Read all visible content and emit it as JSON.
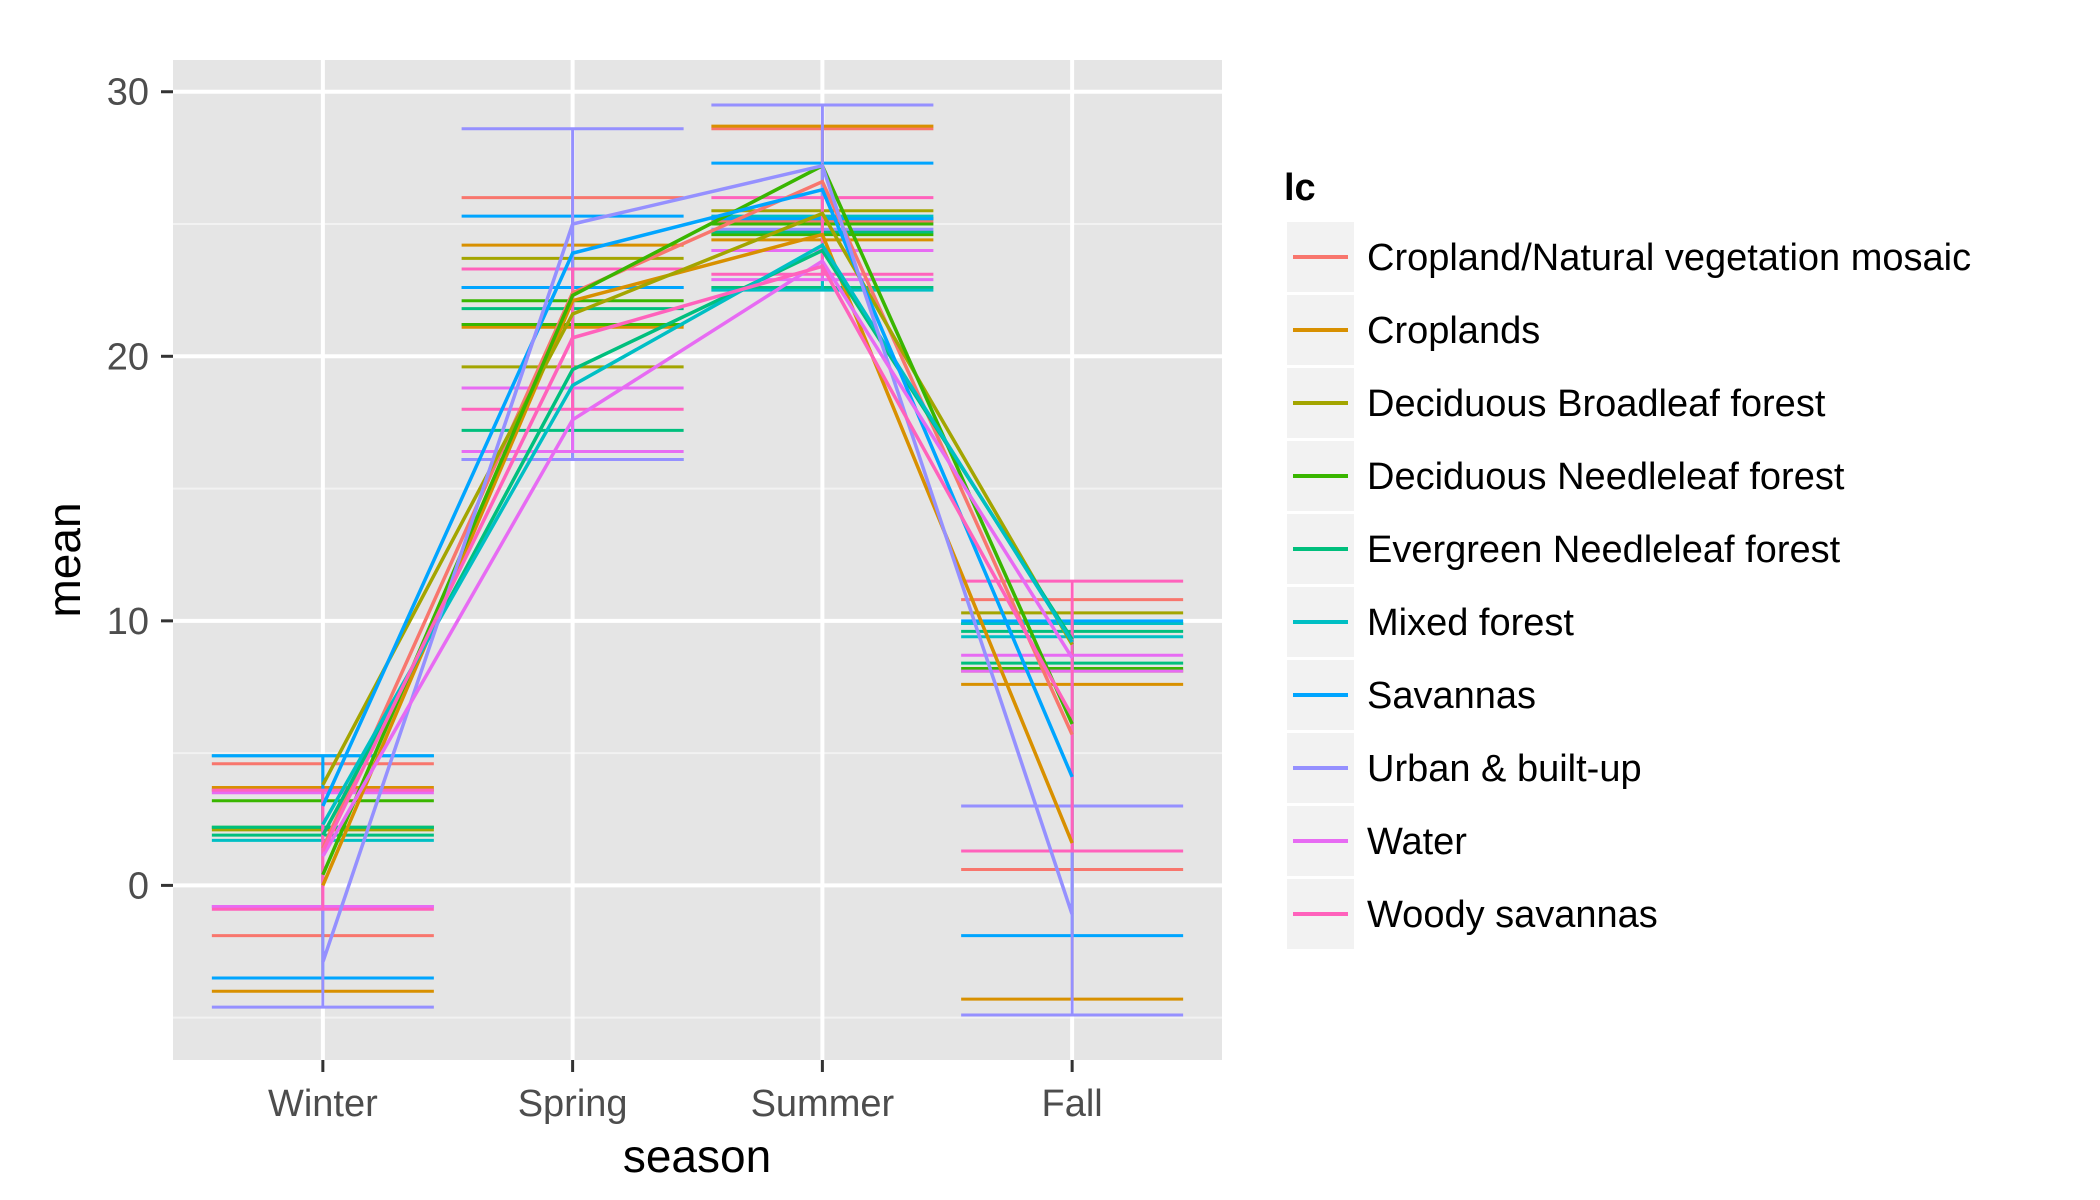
{
  "chart_data": {
    "type": "line",
    "title": "",
    "xlabel": "season",
    "ylabel": "mean",
    "categories": [
      "Winter",
      "Spring",
      "Summer",
      "Fall"
    ],
    "ylim": [
      -6.6,
      31.2
    ],
    "yticks": [
      0,
      10,
      20,
      30
    ],
    "grid": true,
    "legend_title": "lc",
    "legend_position": "right",
    "series": [
      {
        "name": "Cropland/Natural vegetation mosaic",
        "color": "#F8766D",
        "values": [
          1.4,
          22.4,
          26.6,
          5.7
        ],
        "errors": [
          [
            -1.9,
            4.6
          ],
          [
            21.2,
            26.0
          ],
          [
            25.1,
            28.6
          ],
          [
            0.6,
            10.8
          ]
        ]
      },
      {
        "name": "Croplands",
        "color": "#D89000",
        "values": [
          0.0,
          22.1,
          24.6,
          1.6
        ],
        "errors": [
          [
            -4.0,
            3.7
          ],
          [
            21.1,
            24.2
          ],
          [
            24.4,
            28.7
          ],
          [
            -4.3,
            7.6
          ]
        ]
      },
      {
        "name": "Deciduous Broadleaf forest",
        "color": "#A3A500",
        "values": [
          3.8,
          21.6,
          25.4,
          9.1
        ],
        "errors": [
          [
            2.1,
            3.6
          ],
          [
            19.6,
            23.7
          ],
          [
            25.2,
            25.5
          ],
          [
            8.1,
            10.3
          ]
        ]
      },
      {
        "name": "Deciduous Needleleaf forest",
        "color": "#39B600",
        "values": [
          0.4,
          22.3,
          27.2,
          6.1
        ],
        "errors": [
          [
            2.2,
            3.2
          ],
          [
            21.2,
            22.1
          ],
          [
            24.6,
            25.0
          ],
          [
            8.2,
            9.9
          ]
        ]
      },
      {
        "name": "Evergreen Needleleaf forest",
        "color": "#00BF7D",
        "values": [
          1.9,
          19.5,
          24.0,
          9.3
        ],
        "errors": [
          [
            1.9,
            2.2
          ],
          [
            17.2,
            21.8
          ],
          [
            22.6,
            24.7
          ],
          [
            8.4,
            9.6
          ]
        ]
      },
      {
        "name": "Mixed forest",
        "color": "#00BFC4",
        "values": [
          2.3,
          18.9,
          24.2,
          9.2
        ],
        "errors": [
          [
            1.7,
            4.9
          ],
          [
            16.1,
            22.6
          ],
          [
            22.5,
            25.3
          ],
          [
            9.4,
            9.9
          ]
        ]
      },
      {
        "name": "Savannas",
        "color": "#00A5FF",
        "values": [
          3.0,
          23.9,
          26.3,
          4.1
        ],
        "errors": [
          [
            -3.5,
            4.9
          ],
          [
            22.6,
            25.3
          ],
          [
            25.2,
            27.3
          ],
          [
            -1.9,
            10.0
          ]
        ]
      },
      {
        "name": "Urban & built-up",
        "color": "#9590FF",
        "values": [
          -2.9,
          25.0,
          27.2,
          -1.1
        ],
        "errors": [
          [
            -4.6,
            -0.8
          ],
          [
            16.1,
            28.6
          ],
          [
            24.8,
            29.5
          ],
          [
            -4.9,
            3.0
          ]
        ]
      },
      {
        "name": "Water",
        "color": "#E76BF3",
        "values": [
          1.1,
          17.6,
          23.6,
          8.6
        ],
        "errors": [
          [
            -0.8,
            3.5
          ],
          [
            16.4,
            18.8
          ],
          [
            22.9,
            24.0
          ],
          [
            8.1,
            8.7
          ]
        ]
      },
      {
        "name": "Woody savannas",
        "color": "#FF62BC",
        "values": [
          1.3,
          20.7,
          23.4,
          6.4
        ],
        "errors": [
          [
            -0.9,
            3.6
          ],
          [
            18.0,
            23.3
          ],
          [
            23.1,
            26.0
          ],
          [
            1.3,
            11.5
          ]
        ]
      }
    ]
  }
}
